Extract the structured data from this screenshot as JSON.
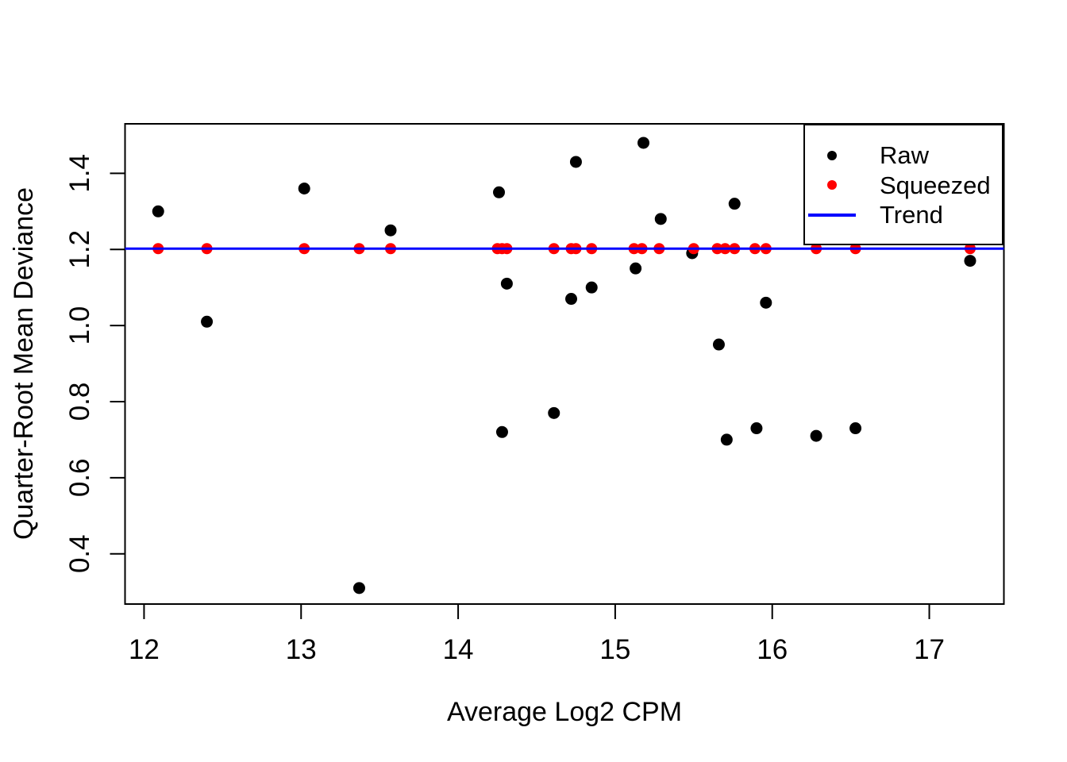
{
  "chart_data": {
    "type": "scatter",
    "title": "",
    "xlabel": "Average Log2 CPM",
    "ylabel": "Quarter-Root Mean Deviance",
    "xlim": [
      11.879,
      17.475
    ],
    "ylim": [
      0.268,
      1.53
    ],
    "grid": false,
    "x_ticks": [
      {
        "v": 12,
        "label": "12"
      },
      {
        "v": 13,
        "label": "13"
      },
      {
        "v": 14,
        "label": "14"
      },
      {
        "v": 15,
        "label": "15"
      },
      {
        "v": 16,
        "label": "16"
      },
      {
        "v": 17,
        "label": "17"
      }
    ],
    "y_ticks": [
      {
        "v": 0.4,
        "label": "0.4"
      },
      {
        "v": 0.6,
        "label": "0.6"
      },
      {
        "v": 0.8,
        "label": "0.8"
      },
      {
        "v": 1.0,
        "label": "1.0"
      },
      {
        "v": 1.2,
        "label": "1.2"
      },
      {
        "v": 1.4,
        "label": "1.4"
      }
    ],
    "series": [
      {
        "name": "Raw",
        "marker": "circle",
        "color": "#000000",
        "radius": 7.5,
        "points": [
          [
            12.09,
            1.3
          ],
          [
            12.4,
            1.01
          ],
          [
            13.02,
            1.36
          ],
          [
            13.37,
            0.31
          ],
          [
            13.57,
            1.25
          ],
          [
            14.26,
            1.35
          ],
          [
            14.28,
            0.72
          ],
          [
            14.31,
            1.11
          ],
          [
            14.61,
            0.77
          ],
          [
            14.72,
            1.07
          ],
          [
            14.75,
            1.43
          ],
          [
            14.85,
            1.1
          ],
          [
            15.13,
            1.15
          ],
          [
            15.18,
            1.48
          ],
          [
            15.29,
            1.28
          ],
          [
            15.49,
            1.19
          ],
          [
            15.66,
            0.95
          ],
          [
            15.71,
            0.7
          ],
          [
            15.76,
            1.32
          ],
          [
            15.9,
            0.73
          ],
          [
            15.96,
            1.06
          ],
          [
            16.28,
            0.71
          ],
          [
            16.53,
            0.73
          ],
          [
            17.26,
            1.17
          ]
        ]
      },
      {
        "name": "Squeezed",
        "marker": "circle",
        "color": "#FF0000",
        "radius": 7,
        "points": [
          [
            12.09,
            1.202
          ],
          [
            12.4,
            1.202
          ],
          [
            13.02,
            1.202
          ],
          [
            13.37,
            1.202
          ],
          [
            13.57,
            1.202
          ],
          [
            14.25,
            1.202
          ],
          [
            14.28,
            1.202
          ],
          [
            14.31,
            1.202
          ],
          [
            14.61,
            1.202
          ],
          [
            14.72,
            1.202
          ],
          [
            14.75,
            1.202
          ],
          [
            14.85,
            1.202
          ],
          [
            15.12,
            1.202
          ],
          [
            15.17,
            1.202
          ],
          [
            15.28,
            1.202
          ],
          [
            15.5,
            1.202
          ],
          [
            15.65,
            1.202
          ],
          [
            15.7,
            1.202
          ],
          [
            15.76,
            1.202
          ],
          [
            15.89,
            1.202
          ],
          [
            15.96,
            1.202
          ],
          [
            16.28,
            1.202
          ],
          [
            16.53,
            1.202
          ],
          [
            17.26,
            1.202
          ]
        ]
      },
      {
        "name": "Trend",
        "marker": "hline",
        "color": "#0000FF",
        "trend_y": 1.202,
        "line_width": 3
      }
    ],
    "legend": {
      "position": "topright",
      "items": [
        {
          "label": "Raw",
          "marker": "dot",
          "color": "#000000"
        },
        {
          "label": "Squeezed",
          "marker": "dot",
          "color": "#FF0000"
        },
        {
          "label": "Trend",
          "marker": "line",
          "color": "#0000FF"
        }
      ]
    }
  }
}
